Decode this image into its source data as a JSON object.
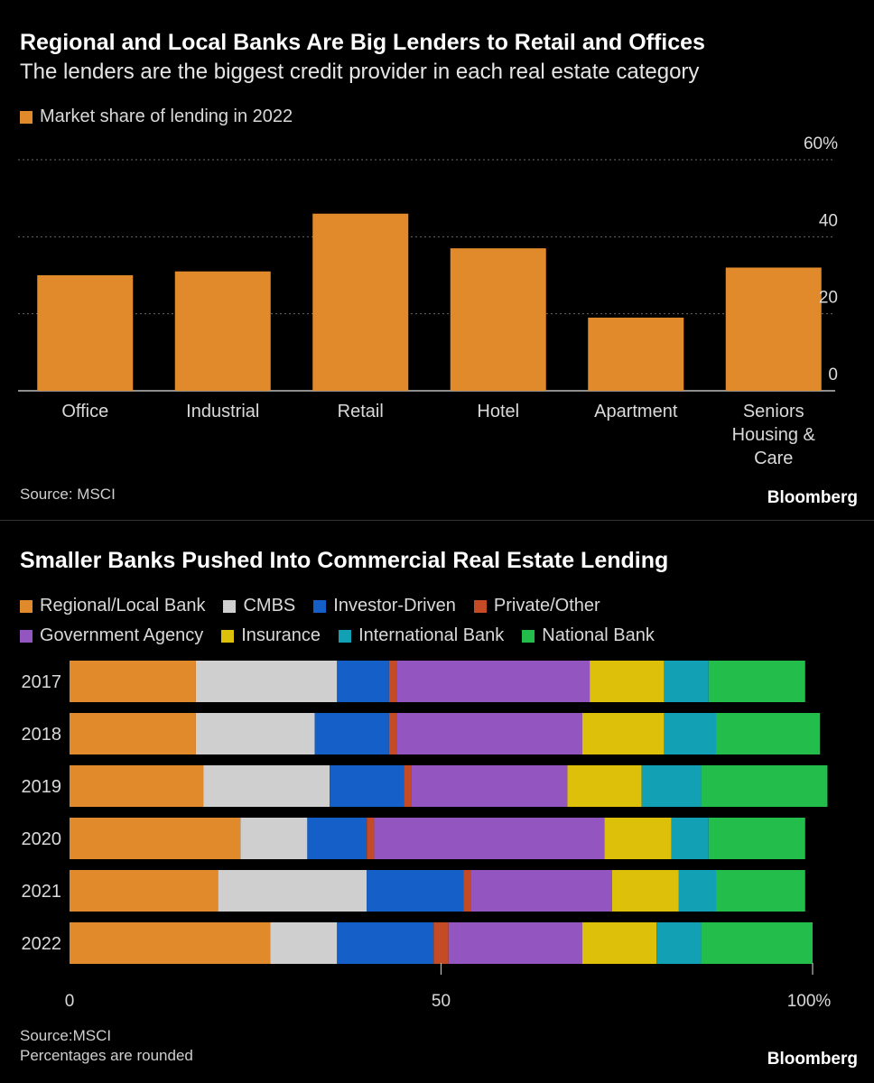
{
  "chart1": {
    "title": "Regional and Local Banks Are Big Lenders to Retail and Offices",
    "subtitle": "The lenders are the biggest credit provider in each real estate category",
    "legend": "Market share of lending in 2022",
    "source": "Source: MSCI",
    "brand": "Bloomberg",
    "bar_color": "#e08a2c"
  },
  "chart2": {
    "title": "Smaller Banks Pushed Into Commercial Real Estate Lending",
    "source_line1": "Source:MSCI",
    "source_line2": "Percentages are rounded",
    "brand": "Bloomberg",
    "colors": {
      "Regional/Local Bank": "#e08a2c",
      "CMBS": "#cfcfcf",
      "Investor-Driven": "#1560c8",
      "Private/Other": "#c54a26",
      "Government Agency": "#9355c0",
      "Insurance": "#dcc00a",
      "International Bank": "#12a0b5",
      "National Bank": "#22bd4a"
    }
  },
  "chart_data": [
    {
      "type": "bar",
      "title": "Regional and Local Banks Are Big Lenders to Retail and Offices",
      "subtitle": "The lenders are the biggest credit provider in each real estate category",
      "categories": [
        "Office",
        "Industrial",
        "Retail",
        "Hotel",
        "Apartment",
        "Seniors Housing & Care"
      ],
      "category_lines": [
        [
          "Office"
        ],
        [
          "Industrial"
        ],
        [
          "Retail"
        ],
        [
          "Hotel"
        ],
        [
          "Apartment"
        ],
        [
          "Seniors",
          "Housing &",
          "Care"
        ]
      ],
      "series": [
        {
          "name": "Market share of lending in 2022",
          "values": [
            30,
            31,
            46,
            37,
            19,
            32
          ]
        }
      ],
      "ylim": [
        0,
        60
      ],
      "yticks": [
        0,
        20,
        40,
        60
      ],
      "ytick_labels": [
        "0",
        "20",
        "40",
        "60%"
      ],
      "grid": true,
      "legend": "top-left"
    },
    {
      "type": "bar",
      "orientation": "horizontal",
      "stacked": true,
      "title": "Smaller Banks Pushed Into Commercial Real Estate Lending",
      "categories": [
        "2017",
        "2018",
        "2019",
        "2020",
        "2021",
        "2022"
      ],
      "series": [
        {
          "name": "Regional/Local Bank",
          "values": [
            17,
            17,
            18,
            23,
            20,
            27
          ]
        },
        {
          "name": "CMBS",
          "values": [
            19,
            16,
            17,
            9,
            20,
            9
          ]
        },
        {
          "name": "Investor-Driven",
          "values": [
            7,
            10,
            10,
            8,
            13,
            13
          ]
        },
        {
          "name": "Private/Other",
          "values": [
            1,
            1,
            1,
            1,
            1,
            2
          ]
        },
        {
          "name": "Government Agency",
          "values": [
            26,
            25,
            21,
            31,
            19,
            18
          ]
        },
        {
          "name": "Insurance",
          "values": [
            10,
            11,
            10,
            9,
            9,
            10
          ]
        },
        {
          "name": "International Bank",
          "values": [
            6,
            7,
            8,
            5,
            5,
            6
          ]
        },
        {
          "name": "National Bank",
          "values": [
            13,
            14,
            17,
            13,
            12,
            15
          ]
        }
      ],
      "xlim": [
        0,
        100
      ],
      "xticks": [
        0,
        50,
        100
      ],
      "xtick_labels": [
        "0",
        "50",
        "100%"
      ],
      "legend": "top-left"
    }
  ]
}
